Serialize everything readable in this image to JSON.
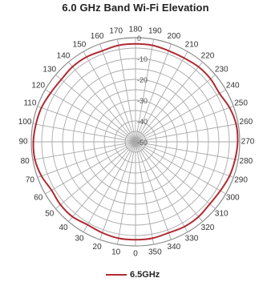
{
  "chart_data": {
    "type": "polar-line",
    "title": "6.0 GHz Band Wi-Fi Elevation",
    "angle_labels": [
      "0",
      "10",
      "20",
      "30",
      "40",
      "50",
      "60",
      "70",
      "80",
      "90",
      "100",
      "110",
      "120",
      "130",
      "140",
      "150",
      "160",
      "170",
      "180",
      "190",
      "200",
      "210",
      "220",
      "230",
      "240",
      "250",
      "260",
      "270",
      "280",
      "290",
      "300",
      "310",
      "320",
      "330",
      "340",
      "350"
    ],
    "radial_labels": [
      "-50",
      "-40",
      "-30",
      "-20",
      "-10",
      "0"
    ],
    "rlim": [
      -50,
      0
    ],
    "angle_label_placement": "0 at bottom, increasing clockwise",
    "grid": true,
    "legend_position": "bottom-center",
    "series": [
      {
        "name": "6.5GHz",
        "color": "#b02a32",
        "angles": [
          0,
          10,
          20,
          30,
          40,
          50,
          60,
          70,
          80,
          90,
          100,
          110,
          120,
          130,
          140,
          150,
          160,
          170,
          180,
          190,
          200,
          210,
          220,
          230,
          240,
          250,
          260,
          270,
          280,
          290,
          300,
          310,
          320,
          330,
          340,
          350,
          360
        ],
        "values": [
          -3,
          -3,
          -3.5,
          -4,
          -3,
          -3,
          -3.5,
          -2,
          -1,
          -1,
          -1.5,
          -2,
          -3,
          -3.5,
          -3,
          -3,
          -3.5,
          -3,
          -3,
          -3,
          -3.5,
          -3.5,
          -3,
          -3,
          -3.5,
          -2,
          -1,
          -1,
          -1.5,
          -2,
          -3,
          -3.5,
          -3,
          -3,
          -3.5,
          -3,
          -3
        ]
      }
    ]
  }
}
